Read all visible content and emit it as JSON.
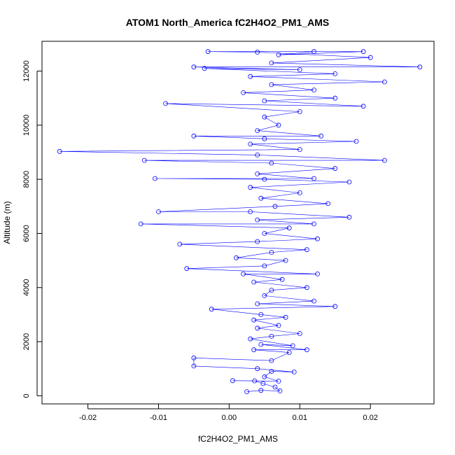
{
  "chart_data": {
    "type": "scatter",
    "title": "ATOM1 North_America fC2H4O2_PM1_AMS",
    "xlabel": "fC2H4O2_PM1_AMS",
    "ylabel": "Altitude (m)",
    "xlim": [
      -0.0265,
      0.029
    ],
    "ylim": [
      -300,
      13100
    ],
    "x_ticks": [
      -0.02,
      -0.01,
      0.0,
      0.01,
      0.02
    ],
    "x_tick_labels": [
      "-0.02",
      "-0.01",
      "0.00",
      "0.01",
      "0.02"
    ],
    "y_ticks": [
      0,
      2000,
      4000,
      6000,
      8000,
      10000,
      12000
    ],
    "y_tick_labels": [
      "0",
      "2000",
      "4000",
      "6000",
      "8000",
      "10000",
      "12000"
    ],
    "grid": false,
    "marker": "open-circle",
    "connected": true,
    "color": "#0000ff",
    "series": [
      {
        "points": [
          [
            0.0025,
            150
          ],
          [
            0.0045,
            200
          ],
          [
            0.0072,
            180
          ],
          [
            0.0065,
            320
          ],
          [
            0.0048,
            450
          ],
          [
            0.0036,
            550
          ],
          [
            0.0005,
            560
          ],
          [
            0.007,
            540
          ],
          [
            0.005,
            700
          ],
          [
            0.006,
            900
          ],
          [
            0.0092,
            880
          ],
          [
            0.004,
            1000
          ],
          [
            -0.005,
            1100
          ],
          [
            -0.005,
            1400
          ],
          [
            0.006,
            1300
          ],
          [
            0.0085,
            1600
          ],
          [
            0.0035,
            1700
          ],
          [
            0.011,
            1700
          ],
          [
            0.0045,
            1900
          ],
          [
            0.009,
            1850
          ],
          [
            0.003,
            2100
          ],
          [
            0.006,
            2200
          ],
          [
            0.01,
            2300
          ],
          [
            0.004,
            2500
          ],
          [
            0.007,
            2600
          ],
          [
            0.0035,
            2800
          ],
          [
            0.008,
            2900
          ],
          [
            0.0045,
            3000
          ],
          [
            -0.0025,
            3200
          ],
          [
            0.015,
            3300
          ],
          [
            0.004,
            3400
          ],
          [
            0.012,
            3500
          ],
          [
            0.005,
            3700
          ],
          [
            0.006,
            3900
          ],
          [
            0.011,
            4000
          ],
          [
            0.0035,
            4200
          ],
          [
            0.0075,
            4300
          ],
          [
            0.002,
            4500
          ],
          [
            0.0125,
            4500
          ],
          [
            -0.006,
            4700
          ],
          [
            0.005,
            4800
          ],
          [
            0.008,
            5000
          ],
          [
            0.001,
            5100
          ],
          [
            0.006,
            5300
          ],
          [
            0.011,
            5400
          ],
          [
            -0.007,
            5600
          ],
          [
            0.004,
            5700
          ],
          [
            0.0125,
            5800
          ],
          [
            0.005,
            6000
          ],
          [
            0.0085,
            6200
          ],
          [
            -0.0125,
            6350
          ],
          [
            0.012,
            6350
          ],
          [
            0.004,
            6500
          ],
          [
            0.017,
            6600
          ],
          [
            0.003,
            6800
          ],
          [
            -0.01,
            6800
          ],
          [
            0.0065,
            7000
          ],
          [
            0.014,
            7100
          ],
          [
            0.0045,
            7300
          ],
          [
            0.01,
            7500
          ],
          [
            0.003,
            7700
          ],
          [
            0.017,
            7900
          ],
          [
            0.005,
            8000
          ],
          [
            -0.0105,
            8030
          ],
          [
            0.012,
            8030
          ],
          [
            0.004,
            8200
          ],
          [
            0.015,
            8400
          ],
          [
            0.006,
            8600
          ],
          [
            -0.012,
            8700
          ],
          [
            0.022,
            8700
          ],
          [
            0.004,
            8900
          ],
          [
            -0.024,
            9030
          ],
          [
            0.01,
            9100
          ],
          [
            0.003,
            9300
          ],
          [
            0.018,
            9400
          ],
          [
            0.005,
            9500
          ],
          [
            -0.005,
            9600
          ],
          [
            0.013,
            9600
          ],
          [
            0.004,
            9800
          ],
          [
            0.007,
            10000
          ],
          [
            0.005,
            10300
          ],
          [
            0.01,
            10500
          ],
          [
            -0.009,
            10800
          ],
          [
            0.019,
            10700
          ],
          [
            0.005,
            10900
          ],
          [
            0.015,
            11000
          ],
          [
            0.002,
            11200
          ],
          [
            0.012,
            11300
          ],
          [
            0.006,
            11500
          ],
          [
            0.022,
            11600
          ],
          [
            0.003,
            11800
          ],
          [
            0.015,
            11900
          ],
          [
            -0.0035,
            12100
          ],
          [
            0.01,
            12050
          ],
          [
            -0.005,
            12150
          ],
          [
            0.027,
            12150
          ],
          [
            0.006,
            12300
          ],
          [
            0.02,
            12500
          ],
          [
            0.004,
            12700
          ],
          [
            -0.003,
            12720
          ],
          [
            0.019,
            12720
          ],
          [
            0.007,
            12600
          ],
          [
            0.012,
            12720
          ]
        ]
      }
    ]
  }
}
